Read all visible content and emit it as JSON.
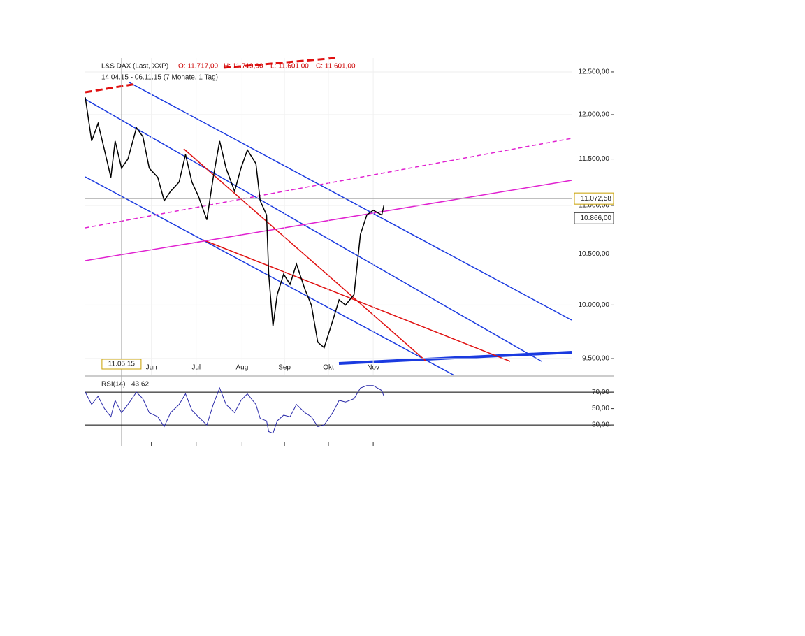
{
  "chart_data": [
    {
      "type": "line",
      "title": "L&S DAX (Last, XXP)",
      "open": "O: 11.717,00",
      "high": "H: 11.719,00",
      "low": "L: 11.601,00",
      "close": "C: 11.601,00",
      "subtitle": "14.04.15 - 06.11.15 (7 Monate, 1 Tag)",
      "log_scale": true,
      "color": "#000000",
      "x": [
        0,
        3,
        6,
        9,
        12,
        14,
        17,
        20,
        24,
        27,
        30,
        34,
        37,
        40,
        44,
        47,
        50,
        53,
        57,
        60,
        63,
        66,
        70,
        73,
        76,
        80,
        82,
        85,
        86,
        88,
        90,
        93,
        96,
        99,
        103,
        106,
        109,
        112,
        116,
        119,
        122,
        126,
        129,
        132,
        135,
        139,
        140
      ],
      "values": [
        12200,
        11700,
        11900,
        11600,
        11300,
        11700,
        11400,
        11500,
        11850,
        11750,
        11400,
        11300,
        11050,
        11150,
        11250,
        11550,
        11250,
        11100,
        10850,
        11300,
        11700,
        11400,
        11150,
        11400,
        11600,
        11450,
        11050,
        10900,
        10300,
        9800,
        10100,
        10300,
        10200,
        10400,
        10150,
        10000,
        9650,
        9600,
        9850,
        10050,
        10000,
        10100,
        10700,
        10900,
        10950,
        10900,
        11000
      ],
      "xlim": [
        0,
        228
      ],
      "xticks": [
        {
          "value": 31,
          "label": "Jun"
        },
        {
          "value": 52,
          "label": "Jul"
        },
        {
          "value": 73.5,
          "label": "Aug"
        },
        {
          "value": 93.4,
          "label": "Sep"
        },
        {
          "value": 114,
          "label": "Okt"
        },
        {
          "value": 135,
          "label": "Nov"
        }
      ],
      "crosshair_x": {
        "value": 17,
        "label": "11.05.15"
      },
      "ylim": [
        9349,
        12668
      ],
      "yticks": [
        {
          "value": 9500,
          "label": "9.500,00"
        },
        {
          "value": 10000,
          "label": "10.000,00"
        },
        {
          "value": 10500,
          "label": "10.500,00"
        },
        {
          "value": 11000,
          "label": "11.000,00"
        },
        {
          "value": 11500,
          "label": "11.500,00"
        },
        {
          "value": 12000,
          "label": "12.000,00"
        },
        {
          "value": 12500,
          "label": "12.500,00"
        }
      ],
      "markers": [
        {
          "value": 11072.58,
          "label": "11.072,58"
        },
        {
          "value": 10866,
          "label": "10.866,00"
        }
      ]
    },
    {
      "type": "line",
      "title": "RSI(14)",
      "last": "43,62",
      "color": "#2a2aaa",
      "x": [
        0,
        3,
        6,
        9,
        12,
        14,
        17,
        20,
        24,
        27,
        30,
        34,
        37,
        40,
        44,
        47,
        50,
        53,
        57,
        60,
        63,
        66,
        70,
        73,
        76,
        80,
        82,
        85,
        86,
        88,
        90,
        93,
        96,
        99,
        103,
        106,
        109,
        112,
        116,
        119,
        122,
        126,
        129,
        132,
        135,
        139,
        140
      ],
      "values": [
        70,
        55,
        65,
        50,
        40,
        60,
        45,
        55,
        70,
        62,
        45,
        40,
        28,
        45,
        55,
        68,
        48,
        40,
        30,
        55,
        75,
        55,
        45,
        60,
        68,
        55,
        38,
        35,
        22,
        20,
        35,
        42,
        40,
        55,
        45,
        40,
        28,
        30,
        45,
        60,
        58,
        62,
        75,
        78,
        78,
        72,
        65
      ],
      "xlim": [
        0,
        228
      ],
      "ylim": [
        4.5,
        88
      ],
      "yticks": [
        {
          "value": 30,
          "label": "30,00"
        },
        {
          "value": 50,
          "label": "50,00"
        },
        {
          "value": 70,
          "label": "70,00"
        }
      ]
    }
  ]
}
